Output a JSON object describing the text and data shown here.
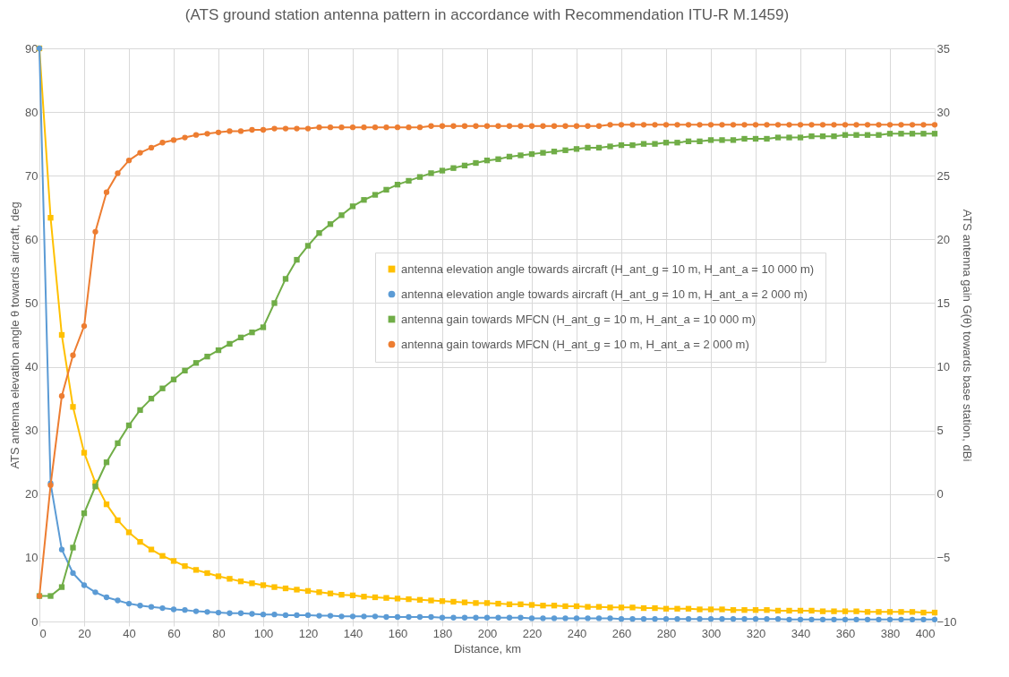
{
  "chart_data": {
    "type": "line",
    "title": "(ATS ground station antenna pattern in accordance with Recommendation ITU-R M.1459)",
    "xlabel": "Distance, km",
    "ylabel": "ATS antenna elevation angle θ towards aircraft, deg",
    "y2label": "ATS antenna gain G(θ) towards base station, dBi",
    "x": [
      0,
      5,
      10,
      15,
      20,
      25,
      30,
      35,
      40,
      45,
      50,
      55,
      60,
      65,
      70,
      75,
      80,
      85,
      90,
      95,
      100,
      105,
      110,
      115,
      120,
      125,
      130,
      135,
      140,
      145,
      150,
      155,
      160,
      165,
      170,
      175,
      180,
      185,
      190,
      195,
      200,
      205,
      210,
      215,
      220,
      225,
      230,
      235,
      240,
      245,
      250,
      255,
      260,
      265,
      270,
      275,
      280,
      285,
      290,
      295,
      300,
      305,
      310,
      315,
      320,
      325,
      330,
      335,
      340,
      345,
      350,
      355,
      360,
      365,
      370,
      375,
      380,
      385,
      390,
      395,
      400
    ],
    "xlim": [
      0,
      400
    ],
    "xticks": [
      0,
      20,
      40,
      60,
      80,
      100,
      120,
      140,
      160,
      180,
      200,
      220,
      240,
      260,
      280,
      300,
      320,
      340,
      360,
      380,
      400
    ],
    "ylim": [
      0,
      90
    ],
    "yticks": [
      0,
      10,
      20,
      30,
      40,
      50,
      60,
      70,
      80,
      90
    ],
    "y2lim": [
      -10,
      35
    ],
    "y2ticks": [
      -10,
      -5,
      0,
      5,
      10,
      15,
      20,
      25,
      30,
      35
    ],
    "grid": true,
    "legend": "right",
    "series": [
      {
        "name": "antenna elevation angle towards aircraft (H_ant_g = 10 m, H_ant_a = 10 000 m)",
        "color": "#ffc000",
        "marker": "square",
        "values": [
          90,
          63.4,
          45,
          33.7,
          26.5,
          21.8,
          18.4,
          15.9,
          14.0,
          12.5,
          11.3,
          10.3,
          9.5,
          8.7,
          8.1,
          7.6,
          7.1,
          6.7,
          6.3,
          6.0,
          5.7,
          5.4,
          5.2,
          5.0,
          4.8,
          4.6,
          4.4,
          4.2,
          4.1,
          3.9,
          3.8,
          3.7,
          3.6,
          3.5,
          3.4,
          3.3,
          3.2,
          3.1,
          3.0,
          2.9,
          2.9,
          2.8,
          2.7,
          2.7,
          2.6,
          2.5,
          2.5,
          2.4,
          2.4,
          2.3,
          2.3,
          2.2,
          2.2,
          2.2,
          2.1,
          2.1,
          2.0,
          2.0,
          2.0,
          1.9,
          1.9,
          1.9,
          1.8,
          1.8,
          1.8,
          1.8,
          1.7,
          1.7,
          1.7,
          1.7,
          1.6,
          1.6,
          1.6,
          1.6,
          1.5,
          1.5,
          1.5,
          1.5,
          1.5,
          1.4,
          1.4
        ]
      },
      {
        "name": "antenna elevation angle towards aircraft (H_ant_g = 10 m, H_ant_a = 2 000 m)",
        "color": "#5b9bd5",
        "marker": "circle",
        "values": [
          90,
          21.7,
          11.3,
          7.6,
          5.7,
          4.6,
          3.8,
          3.3,
          2.8,
          2.5,
          2.3,
          2.1,
          1.9,
          1.8,
          1.6,
          1.5,
          1.4,
          1.3,
          1.3,
          1.2,
          1.1,
          1.1,
          1.0,
          1.0,
          1.0,
          0.9,
          0.9,
          0.8,
          0.8,
          0.8,
          0.8,
          0.7,
          0.7,
          0.7,
          0.7,
          0.7,
          0.6,
          0.6,
          0.6,
          0.6,
          0.6,
          0.6,
          0.6,
          0.6,
          0.5,
          0.5,
          0.5,
          0.5,
          0.5,
          0.5,
          0.5,
          0.5,
          0.4,
          0.4,
          0.4,
          0.4,
          0.4,
          0.4,
          0.4,
          0.4,
          0.4,
          0.4,
          0.4,
          0.4,
          0.4,
          0.4,
          0.4,
          0.3,
          0.3,
          0.3,
          0.3,
          0.3,
          0.3,
          0.3,
          0.3,
          0.3,
          0.3,
          0.3,
          0.3,
          0.3,
          0.3
        ]
      },
      {
        "name": "antenna gain towards MFCN (H_ant_g = 10 m, H_ant_a = 10 000 m)",
        "color": "#70ad47",
        "marker": "square",
        "axis": "y2",
        "values": [
          -8,
          -8,
          -7.3,
          -4.2,
          -1.5,
          0.6,
          2.5,
          4.0,
          5.4,
          6.6,
          7.5,
          8.3,
          9.0,
          9.7,
          10.3,
          10.8,
          11.3,
          11.8,
          12.3,
          12.7,
          13.1,
          15.0,
          16.9,
          18.4,
          19.5,
          20.5,
          21.2,
          21.9,
          22.6,
          23.1,
          23.5,
          23.9,
          24.3,
          24.6,
          24.9,
          25.2,
          25.4,
          25.6,
          25.8,
          26.0,
          26.2,
          26.3,
          26.5,
          26.6,
          26.7,
          26.8,
          26.9,
          27.0,
          27.1,
          27.2,
          27.2,
          27.3,
          27.4,
          27.4,
          27.5,
          27.5,
          27.6,
          27.6,
          27.7,
          27.7,
          27.8,
          27.8,
          27.8,
          27.9,
          27.9,
          27.9,
          28.0,
          28.0,
          28.0,
          28.1,
          28.1,
          28.1,
          28.2,
          28.2,
          28.2,
          28.2,
          28.3,
          28.3,
          28.3,
          28.3,
          28.3
        ]
      },
      {
        "name": "antenna gain towards MFCN (H_ant_g = 10 m, H_ant_a = 2 000 m)",
        "color": "#ed7d31",
        "marker": "circle",
        "axis": "y2",
        "values": [
          -8,
          0.7,
          7.7,
          10.9,
          13.2,
          20.6,
          23.7,
          25.2,
          26.2,
          26.8,
          27.2,
          27.6,
          27.8,
          28.0,
          28.2,
          28.3,
          28.4,
          28.5,
          28.5,
          28.6,
          28.6,
          28.7,
          28.7,
          28.7,
          28.7,
          28.8,
          28.8,
          28.8,
          28.8,
          28.8,
          28.8,
          28.8,
          28.8,
          28.8,
          28.8,
          28.9,
          28.9,
          28.9,
          28.9,
          28.9,
          28.9,
          28.9,
          28.9,
          28.9,
          28.9,
          28.9,
          28.9,
          28.9,
          28.9,
          28.9,
          28.9,
          29.0,
          29.0,
          29.0,
          29.0,
          29.0,
          29.0,
          29.0,
          29.0,
          29.0,
          29.0,
          29.0,
          29.0,
          29.0,
          29.0,
          29.0,
          29.0,
          29.0,
          29.0,
          29.0,
          29.0,
          29.0,
          29.0,
          29.0,
          29.0,
          29.0,
          29.0,
          29.0,
          29.0,
          29.0,
          29.0
        ]
      }
    ]
  }
}
